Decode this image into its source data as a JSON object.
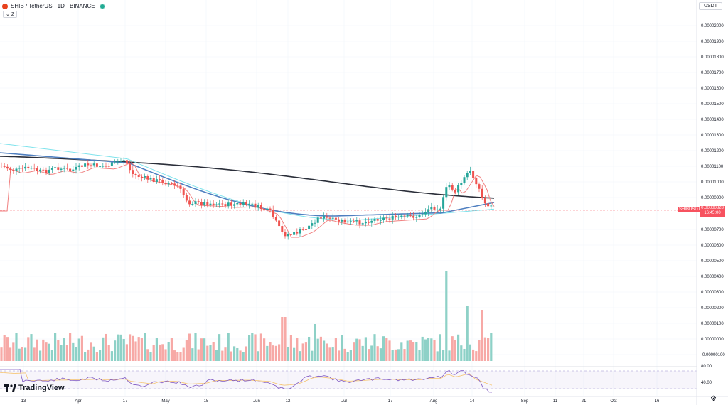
{
  "header": {
    "symbol_title": "SHIB / TetherUS · 1D · BINANCE",
    "indicator_count": "2",
    "currency": "USDT"
  },
  "price_scale": {
    "labels": [
      "0.00002000",
      "0.00001900",
      "0.00001800",
      "0.00001700",
      "0.00001600",
      "0.00001500",
      "0.00001400",
      "0.00001300",
      "0.00001200",
      "0.00001100",
      "0.00001000",
      "0.00000900",
      "0.00000700",
      "0.00000600",
      "0.00000500",
      "0.00000400",
      "0.00000300",
      "0.00000200",
      "0.00000100",
      "0.00000000",
      "-0.00000100"
    ],
    "current_symbol": "SHIBUSDT",
    "current_price": "0.00000828",
    "countdown": "16:45:00"
  },
  "rsi_scale": {
    "labels": [
      "80.00",
      "40.00"
    ]
  },
  "time_axis": {
    "labels": [
      "13",
      "Apr",
      "17",
      "May",
      "15",
      "Jun",
      "12",
      "Jul",
      "17",
      "Aug",
      "14",
      "Sep",
      "11",
      "21",
      "Oct",
      "16"
    ]
  },
  "branding": {
    "name": "TradingView"
  },
  "icons": {
    "settings": "gear-icon",
    "collapse": "chevron-down-icon",
    "logo": "tradingview-logo"
  },
  "colors": {
    "up": "#26a69a",
    "down": "#ef5350",
    "ma_black": "#2a2e39",
    "ma_blue": "#5b87c7",
    "ma_cyan": "#7fe3ec",
    "ma_red": "#f08080",
    "rsi": "#7e57c2",
    "price_line": "#f7525f"
  }
}
